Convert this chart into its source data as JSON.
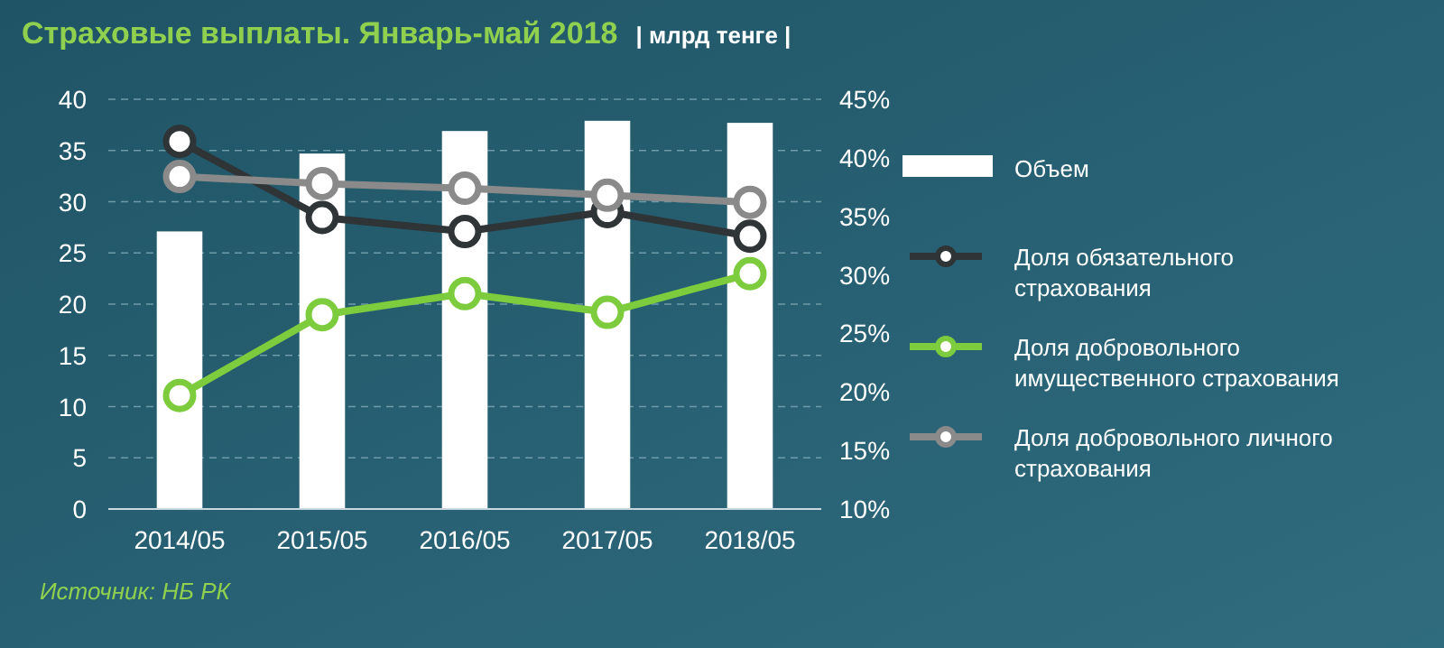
{
  "chart_data": {
    "type": "bar",
    "title": "Страховые выплаты. Январь-май 2018",
    "subtitle": "| млрд тенге |",
    "categories": [
      "2014/05",
      "2015/05",
      "2016/05",
      "2017/05",
      "2018/05"
    ],
    "series": [
      {
        "name": "Объем",
        "color": "#ffffff",
        "values": [
          27.1,
          34.7,
          36.9,
          37.9,
          37.7
        ]
      },
      {
        "name": "Доля обязательного страхования",
        "type": "line",
        "axis": "y2",
        "color": "#2f3436",
        "values": [
          41.4,
          34.9,
          33.7,
          35.4,
          33.3
        ]
      },
      {
        "name": "Доля добровольного имущественного страхования",
        "type": "line",
        "axis": "y2",
        "color": "#7ccc3e",
        "values": [
          19.7,
          26.6,
          28.4,
          26.8,
          30.1
        ]
      },
      {
        "name": "Доля добровольного личного страхования",
        "type": "line",
        "axis": "y2",
        "color": "#8a8a8a",
        "values": [
          38.4,
          37.8,
          37.4,
          36.8,
          36.2
        ]
      }
    ],
    "ylim": [
      0,
      40
    ],
    "yticks": [
      0,
      5,
      10,
      15,
      20,
      25,
      30,
      35,
      40
    ],
    "y2lim": [
      10,
      45
    ],
    "y2ticks": [
      {
        "value": 10,
        "label": "10%"
      },
      {
        "value": 15,
        "label": "15%"
      },
      {
        "value": 20,
        "label": "20%"
      },
      {
        "value": 25,
        "label": "25%"
      },
      {
        "value": 30,
        "label": "30%"
      },
      {
        "value": 35,
        "label": "35%"
      },
      {
        "value": 40,
        "label": "40%"
      },
      {
        "value": 45,
        "label": "45%"
      }
    ],
    "grid": "y",
    "legend": "right",
    "marker": "circle",
    "annotations": [
      "Источник: НБ РК"
    ]
  }
}
